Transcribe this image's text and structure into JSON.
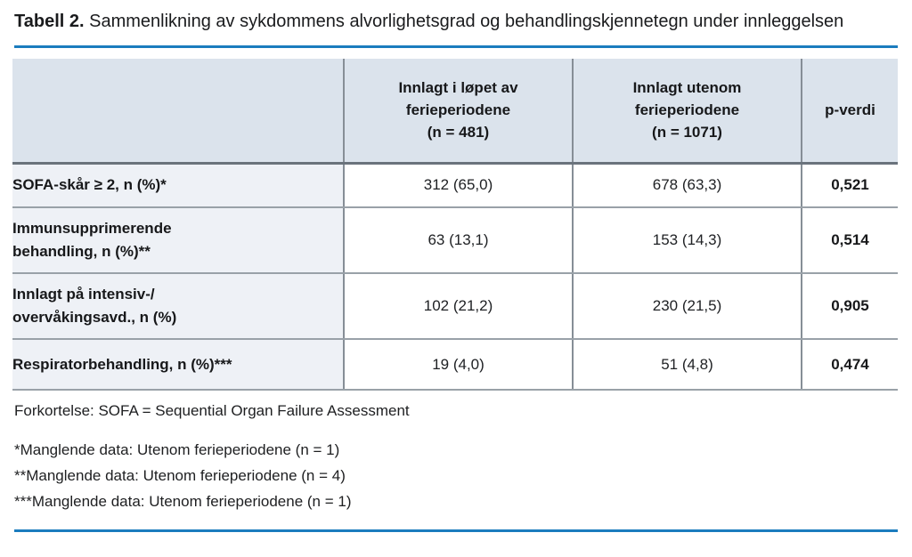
{
  "title": {
    "bold": "Tabell 2.",
    "rest": " Sammenlikning av sykdommens alvorlighetsgrad og behandlingskjennetegn under innleggelsen"
  },
  "table": {
    "columns": [
      "",
      "Innlagt i løpet av\nferieperiodene\n(n = 481)",
      "Innlagt utenom\nferieperiodene\n(n = 1071)",
      "p-verdi"
    ],
    "rows": [
      {
        "label": "SOFA-skår ≥ 2, n (%)*",
        "during": "312 (65,0)",
        "outside": "678 (63,3)",
        "p": "0,521"
      },
      {
        "label": "Immunsupprimerende\nbehandling, n (%)**",
        "during": "63 (13,1)",
        "outside": "153 (14,3)",
        "p": "0,514"
      },
      {
        "label": "Innlagt på intensiv-/\novervåkingsavd., n (%)",
        "during": "102 (21,2)",
        "outside": "230 (21,5)",
        "p": "0,905"
      },
      {
        "label": "Respiratorbehandling, n (%)***",
        "during": "19 (4,0)",
        "outside": "51 (4,8)",
        "p": "0,474"
      }
    ]
  },
  "footnotes": {
    "abbreviation": "Forkortelse: SOFA = Sequential Organ Failure Assessment",
    "notes": [
      "*Manglende data: Utenom ferieperiodene (n = 1)",
      "**Manglende data: Utenom ferieperiodene (n = 4)",
      "***Manglende data: Utenom ferieperiodene (n = 1)"
    ]
  },
  "colors": {
    "header_bg": "#dbe3ec",
    "label_col_bg": "#eef1f6",
    "rule_blue": "#1b7cbe",
    "row_border": "#99a1a8",
    "col_border": "#868e96",
    "header_border": "#6a737c"
  }
}
